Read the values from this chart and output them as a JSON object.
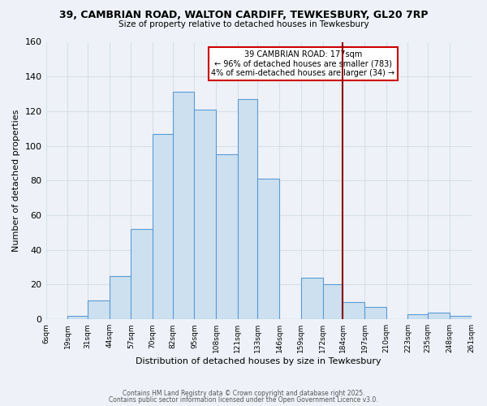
{
  "title": "39, CAMBRIAN ROAD, WALTON CARDIFF, TEWKESBURY, GL20 7RP",
  "subtitle": "Size of property relative to detached houses in Tewkesbury",
  "xlabel": "Distribution of detached houses by size in Tewkesbury",
  "ylabel": "Number of detached properties",
  "bin_labels": [
    "6sqm",
    "19sqm",
    "31sqm",
    "44sqm",
    "57sqm",
    "70sqm",
    "82sqm",
    "95sqm",
    "108sqm",
    "121sqm",
    "133sqm",
    "146sqm",
    "159sqm",
    "172sqm",
    "184sqm",
    "197sqm",
    "210sqm",
    "223sqm",
    "235sqm",
    "248sqm",
    "261sqm"
  ],
  "bar_heights": [
    0,
    2,
    11,
    25,
    52,
    107,
    131,
    121,
    95,
    127,
    81,
    0,
    24,
    20,
    10,
    7,
    0,
    3,
    4,
    2
  ],
  "bar_color": "#cce0f0",
  "bar_edge_color": "#5b9bd5",
  "vline_color": "#8b0000",
  "ylim": [
    0,
    160
  ],
  "yticks": [
    0,
    20,
    40,
    60,
    80,
    100,
    120,
    140,
    160
  ],
  "annotation_title": "39 CAMBRIAN ROAD: 177sqm",
  "annotation_line1": "← 96% of detached houses are smaller (783)",
  "annotation_line2": "4% of semi-detached houses are larger (34) →",
  "annotation_box_color": "#ffffff",
  "annotation_box_edge": "#cc0000",
  "footer1": "Contains HM Land Registry data © Crown copyright and database right 2025.",
  "footer2": "Contains public sector information licensed under the Open Government Licence v3.0.",
  "background_color": "#eef2f8",
  "grid_color": "#d8dfe8",
  "bin_edges": [
    6,
    19,
    31,
    44,
    57,
    70,
    82,
    95,
    108,
    121,
    133,
    146,
    159,
    172,
    184,
    197,
    210,
    223,
    235,
    248,
    261
  ],
  "vline_bin_edge": 184
}
